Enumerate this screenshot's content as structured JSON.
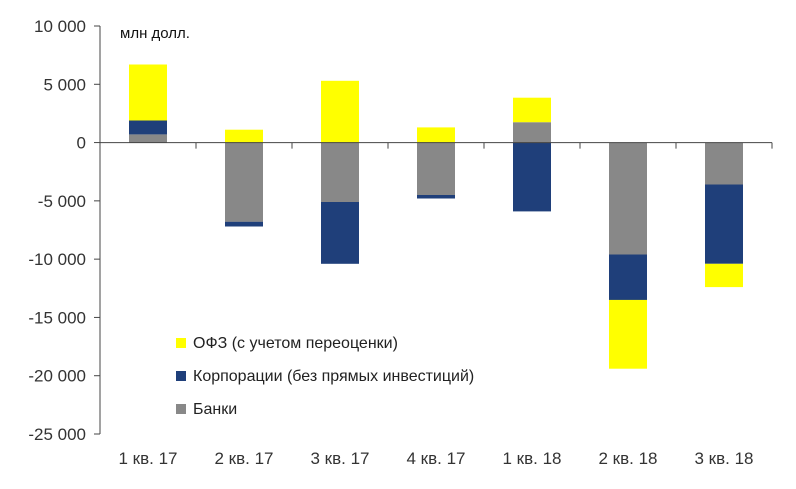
{
  "chart_data": {
    "type": "bar",
    "stacked": true,
    "unit_label": "млн долл.",
    "categories": [
      "1 кв. 17",
      "2 кв. 17",
      "3 кв. 17",
      "4 кв. 17",
      "1 кв. 18",
      "2 кв. 18",
      "3 кв. 18"
    ],
    "series": [
      {
        "name": "Банки",
        "color": "#888888",
        "values": [
          700,
          -6800,
          -5100,
          -4500,
          1750,
          -9600,
          -3600
        ]
      },
      {
        "name": "Корпорации (без прямых инвестиций)",
        "color": "#1f3f7a",
        "values": [
          1200,
          -400,
          -5300,
          -300,
          -5900,
          -3900,
          -6800
        ]
      },
      {
        "name": "ОФЗ (с учетом переоценки)",
        "color": "#ffff00",
        "values": [
          4800,
          1100,
          5300,
          1300,
          2100,
          -5900,
          -2000
        ]
      }
    ],
    "legend_order": [
      "ОФЗ (с учетом переоценки)",
      "Корпорации (без прямых инвестиций)",
      "Банки"
    ],
    "legend_position": "bottom-left",
    "ylim": [
      -25000,
      10000
    ],
    "yticks": [
      10000,
      5000,
      0,
      -5000,
      -10000,
      -15000,
      -20000,
      -25000
    ],
    "ytick_labels": [
      "10 000",
      "5 000",
      "0",
      "-5 000",
      "-10 000",
      "-15 000",
      "-20 000",
      "-25 000"
    ],
    "grid": false
  }
}
